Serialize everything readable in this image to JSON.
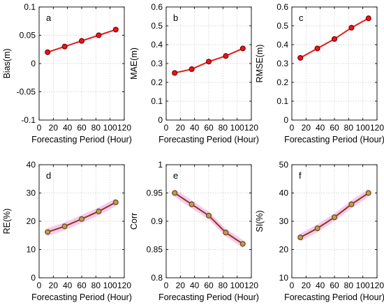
{
  "chart_data": [
    {
      "type": "line",
      "panel": "a",
      "x": [
        12,
        36,
        60,
        84,
        108
      ],
      "y": [
        0.02,
        0.03,
        0.04,
        0.05,
        0.06
      ],
      "xlim": [
        0,
        120
      ],
      "ylim": [
        -0.1,
        0.1
      ],
      "xticks": [
        0,
        20,
        40,
        60,
        80,
        100,
        120
      ],
      "yticks": [
        -0.1,
        -0.05,
        0,
        0.05,
        0.1
      ],
      "ytick_labels": [
        "-0.1",
        "-0.05",
        "0",
        "0.05",
        "0.1"
      ],
      "xlabel": "Forecasting Period (Hour)",
      "ylabel": "Bias(m)",
      "grid": true,
      "line_color": "#e31a1c",
      "marker_edge": "#8b0000",
      "marker_face": "#e31a1c",
      "band": false
    },
    {
      "type": "line",
      "panel": "b",
      "x": [
        12,
        36,
        60,
        84,
        108
      ],
      "y": [
        0.25,
        0.27,
        0.31,
        0.34,
        0.38
      ],
      "xlim": [
        0,
        120
      ],
      "ylim": [
        0,
        0.6
      ],
      "xticks": [
        0,
        20,
        40,
        60,
        80,
        100,
        120
      ],
      "yticks": [
        0,
        0.1,
        0.2,
        0.3,
        0.4,
        0.5,
        0.6
      ],
      "ytick_labels": [
        "0",
        "0.1",
        "0.2",
        "0.3",
        "0.4",
        "0.5",
        "0.6"
      ],
      "xlabel": "Forecasting Period (Hour)",
      "ylabel": "MAE(m)",
      "grid": true,
      "line_color": "#e31a1c",
      "marker_edge": "#8b0000",
      "marker_face": "#e31a1c",
      "band": false
    },
    {
      "type": "line",
      "panel": "c",
      "x": [
        12,
        36,
        60,
        84,
        108
      ],
      "y": [
        0.33,
        0.38,
        0.43,
        0.49,
        0.54
      ],
      "xlim": [
        0,
        120
      ],
      "ylim": [
        0,
        0.6
      ],
      "xticks": [
        0,
        20,
        40,
        60,
        80,
        100,
        120
      ],
      "yticks": [
        0,
        0.1,
        0.2,
        0.3,
        0.4,
        0.5,
        0.6
      ],
      "ytick_labels": [
        "0",
        "0.1",
        "0.2",
        "0.3",
        "0.4",
        "0.5",
        "0.6"
      ],
      "xlabel": "Forecasting Period (Hour)",
      "ylabel": "RMSE(m)",
      "grid": true,
      "line_color": "#e31a1c",
      "marker_edge": "#8b0000",
      "marker_face": "#e31a1c",
      "band": false
    },
    {
      "type": "line",
      "panel": "d",
      "x": [
        12,
        36,
        60,
        84,
        108
      ],
      "y": [
        16.2,
        18.2,
        20.8,
        23.5,
        26.7
      ],
      "xlim": [
        0,
        120
      ],
      "ylim": [
        0,
        40
      ],
      "xticks": [
        0,
        20,
        40,
        60,
        80,
        100,
        120
      ],
      "yticks": [
        0,
        10,
        20,
        30,
        40
      ],
      "ytick_labels": [
        "0",
        "10",
        "20",
        "30",
        "40"
      ],
      "xlabel": "Forecasting Period (Hour)",
      "ylabel": "RE(%)",
      "grid": true,
      "line_color": "#8b3a0f",
      "marker_edge": "#7a4a1a",
      "marker_face": "#b8a05a",
      "band": true,
      "band_color": "#f4c3f0"
    },
    {
      "type": "line",
      "panel": "e",
      "x": [
        12,
        36,
        60,
        84,
        108
      ],
      "y": [
        0.95,
        0.93,
        0.91,
        0.88,
        0.86
      ],
      "xlim": [
        0,
        120
      ],
      "ylim": [
        0.8,
        1
      ],
      "xticks": [
        0,
        20,
        40,
        60,
        80,
        100,
        120
      ],
      "yticks": [
        0.8,
        0.85,
        0.9,
        0.95,
        1
      ],
      "ytick_labels": [
        "0.8",
        "0.85",
        "0.9",
        "0.95",
        "1"
      ],
      "xlabel": "Forecasting Period (Hour)",
      "ylabel": "Corr",
      "grid": true,
      "line_color": "#8b3a0f",
      "marker_edge": "#7a4a1a",
      "marker_face": "#b8a05a",
      "band": true,
      "band_color": "#f4c3f0"
    },
    {
      "type": "line",
      "panel": "f",
      "x": [
        12,
        36,
        60,
        84,
        108
      ],
      "y": [
        24.3,
        27.5,
        31.4,
        36,
        40
      ],
      "xlim": [
        0,
        120
      ],
      "ylim": [
        10,
        50
      ],
      "xticks": [
        0,
        20,
        40,
        60,
        80,
        100,
        120
      ],
      "yticks": [
        10,
        20,
        30,
        40,
        50
      ],
      "ytick_labels": [
        "10",
        "20",
        "30",
        "40",
        "50"
      ],
      "xlabel": "Forecasting Period (Hour)",
      "ylabel": "SI(%)",
      "grid": true,
      "line_color": "#8b3a0f",
      "marker_edge": "#7a4a1a",
      "marker_face": "#b8a05a",
      "band": true,
      "band_color": "#f4c3f0"
    }
  ]
}
